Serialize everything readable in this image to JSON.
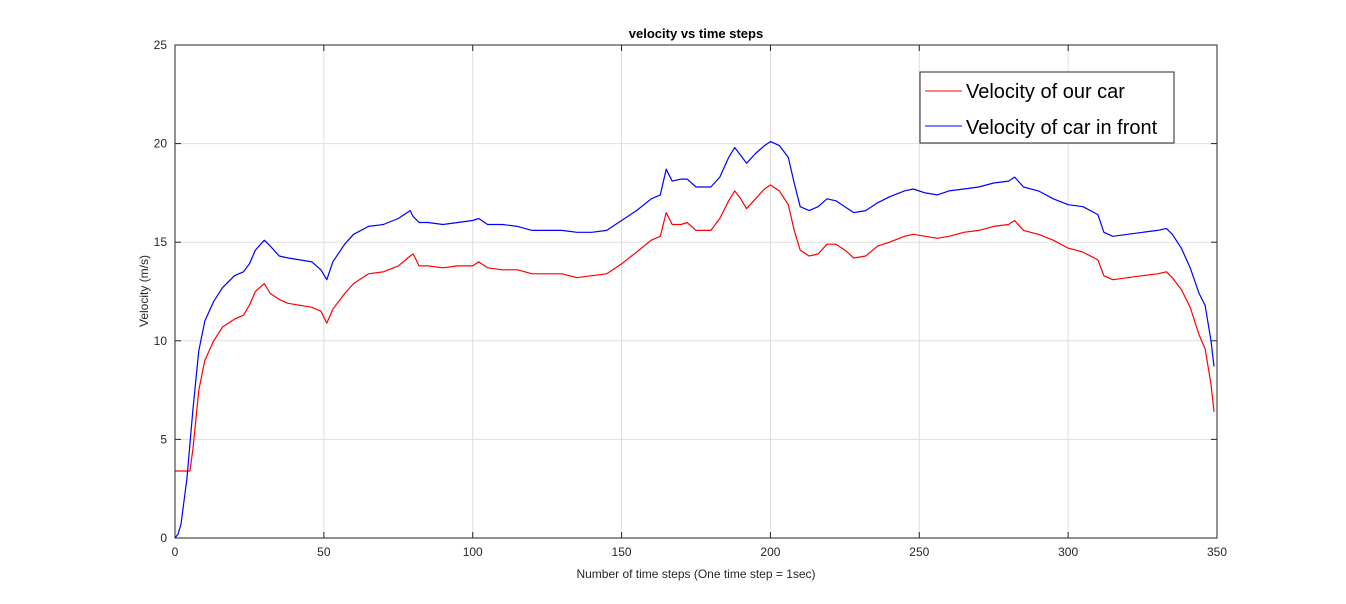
{
  "chart_data": {
    "type": "line",
    "title": "velocity vs time steps",
    "xlabel": "Number of time steps (One time step = 1sec)",
    "ylabel": "Velocity (m/s)",
    "xlim": [
      0,
      350
    ],
    "ylim": [
      0,
      25
    ],
    "xticks": [
      "0",
      "50",
      "100",
      "150",
      "200",
      "250",
      "300",
      "350"
    ],
    "yticks": [
      "0",
      "5",
      "10",
      "15",
      "20",
      "25"
    ],
    "grid": true,
    "legend_position": "top-right",
    "series": [
      {
        "name": "Velocity of our car",
        "color": "#ff0000",
        "points": [
          [
            0,
            3.4
          ],
          [
            2,
            3.4
          ],
          [
            5,
            3.4
          ],
          [
            6,
            4.5
          ],
          [
            8,
            7.5
          ],
          [
            10,
            9.0
          ],
          [
            13,
            10.0
          ],
          [
            16,
            10.7
          ],
          [
            20,
            11.1
          ],
          [
            23,
            11.3
          ],
          [
            25,
            11.8
          ],
          [
            27,
            12.5
          ],
          [
            30,
            12.9
          ],
          [
            32,
            12.4
          ],
          [
            35,
            12.1
          ],
          [
            38,
            11.9
          ],
          [
            42,
            11.8
          ],
          [
            46,
            11.7
          ],
          [
            49,
            11.5
          ],
          [
            51,
            10.9
          ],
          [
            53,
            11.6
          ],
          [
            57,
            12.4
          ],
          [
            60,
            12.9
          ],
          [
            65,
            13.4
          ],
          [
            70,
            13.5
          ],
          [
            75,
            13.8
          ],
          [
            79,
            14.3
          ],
          [
            80,
            14.4
          ],
          [
            82,
            13.8
          ],
          [
            85,
            13.8
          ],
          [
            90,
            13.7
          ],
          [
            95,
            13.8
          ],
          [
            100,
            13.8
          ],
          [
            102,
            14.0
          ],
          [
            105,
            13.7
          ],
          [
            110,
            13.6
          ],
          [
            115,
            13.6
          ],
          [
            120,
            13.4
          ],
          [
            125,
            13.4
          ],
          [
            130,
            13.4
          ],
          [
            135,
            13.2
          ],
          [
            140,
            13.3
          ],
          [
            145,
            13.4
          ],
          [
            150,
            13.9
          ],
          [
            155,
            14.5
          ],
          [
            160,
            15.1
          ],
          [
            163,
            15.3
          ],
          [
            165,
            16.5
          ],
          [
            167,
            15.9
          ],
          [
            170,
            15.9
          ],
          [
            172,
            16.0
          ],
          [
            175,
            15.6
          ],
          [
            180,
            15.6
          ],
          [
            183,
            16.2
          ],
          [
            186,
            17.1
          ],
          [
            188,
            17.6
          ],
          [
            190,
            17.2
          ],
          [
            192,
            16.7
          ],
          [
            195,
            17.2
          ],
          [
            198,
            17.7
          ],
          [
            200,
            17.9
          ],
          [
            203,
            17.6
          ],
          [
            206,
            16.9
          ],
          [
            208,
            15.6
          ],
          [
            210,
            14.6
          ],
          [
            213,
            14.3
          ],
          [
            216,
            14.4
          ],
          [
            219,
            14.9
          ],
          [
            222,
            14.9
          ],
          [
            225,
            14.6
          ],
          [
            228,
            14.2
          ],
          [
            232,
            14.3
          ],
          [
            236,
            14.8
          ],
          [
            240,
            15.0
          ],
          [
            245,
            15.3
          ],
          [
            248,
            15.4
          ],
          [
            252,
            15.3
          ],
          [
            256,
            15.2
          ],
          [
            260,
            15.3
          ],
          [
            265,
            15.5
          ],
          [
            270,
            15.6
          ],
          [
            275,
            15.8
          ],
          [
            280,
            15.9
          ],
          [
            282,
            16.1
          ],
          [
            285,
            15.6
          ],
          [
            290,
            15.4
          ],
          [
            295,
            15.1
          ],
          [
            300,
            14.7
          ],
          [
            305,
            14.5
          ],
          [
            310,
            14.1
          ],
          [
            312,
            13.3
          ],
          [
            315,
            13.1
          ],
          [
            320,
            13.2
          ],
          [
            325,
            13.3
          ],
          [
            330,
            13.4
          ],
          [
            333,
            13.5
          ],
          [
            335,
            13.2
          ],
          [
            338,
            12.6
          ],
          [
            341,
            11.7
          ],
          [
            344,
            10.3
          ],
          [
            346,
            9.6
          ],
          [
            348,
            7.8
          ],
          [
            349,
            6.4
          ]
        ]
      },
      {
        "name": "Velocity of car in front",
        "color": "#0000ff",
        "points": [
          [
            0,
            0.0
          ],
          [
            1,
            0.2
          ],
          [
            2,
            0.7
          ],
          [
            4,
            3.0
          ],
          [
            6,
            6.5
          ],
          [
            8,
            9.5
          ],
          [
            10,
            11.0
          ],
          [
            13,
            12.0
          ],
          [
            16,
            12.7
          ],
          [
            20,
            13.3
          ],
          [
            23,
            13.5
          ],
          [
            25,
            13.9
          ],
          [
            27,
            14.6
          ],
          [
            30,
            15.1
          ],
          [
            32,
            14.8
          ],
          [
            35,
            14.3
          ],
          [
            38,
            14.2
          ],
          [
            42,
            14.1
          ],
          [
            46,
            14.0
          ],
          [
            49,
            13.6
          ],
          [
            51,
            13.1
          ],
          [
            53,
            14.0
          ],
          [
            57,
            14.9
          ],
          [
            60,
            15.4
          ],
          [
            65,
            15.8
          ],
          [
            70,
            15.9
          ],
          [
            75,
            16.2
          ],
          [
            79,
            16.6
          ],
          [
            80,
            16.3
          ],
          [
            82,
            16.0
          ],
          [
            85,
            16.0
          ],
          [
            90,
            15.9
          ],
          [
            95,
            16.0
          ],
          [
            100,
            16.1
          ],
          [
            102,
            16.2
          ],
          [
            105,
            15.9
          ],
          [
            110,
            15.9
          ],
          [
            115,
            15.8
          ],
          [
            120,
            15.6
          ],
          [
            125,
            15.6
          ],
          [
            130,
            15.6
          ],
          [
            135,
            15.5
          ],
          [
            140,
            15.5
          ],
          [
            145,
            15.6
          ],
          [
            150,
            16.1
          ],
          [
            155,
            16.6
          ],
          [
            160,
            17.2
          ],
          [
            163,
            17.4
          ],
          [
            165,
            18.7
          ],
          [
            167,
            18.1
          ],
          [
            170,
            18.2
          ],
          [
            172,
            18.2
          ],
          [
            175,
            17.8
          ],
          [
            180,
            17.8
          ],
          [
            183,
            18.3
          ],
          [
            186,
            19.3
          ],
          [
            188,
            19.8
          ],
          [
            190,
            19.4
          ],
          [
            192,
            19.0
          ],
          [
            195,
            19.5
          ],
          [
            198,
            19.9
          ],
          [
            200,
            20.1
          ],
          [
            203,
            19.9
          ],
          [
            206,
            19.3
          ],
          [
            208,
            18.0
          ],
          [
            210,
            16.8
          ],
          [
            213,
            16.6
          ],
          [
            216,
            16.8
          ],
          [
            219,
            17.2
          ],
          [
            222,
            17.1
          ],
          [
            225,
            16.8
          ],
          [
            228,
            16.5
          ],
          [
            232,
            16.6
          ],
          [
            236,
            17.0
          ],
          [
            240,
            17.3
          ],
          [
            245,
            17.6
          ],
          [
            248,
            17.7
          ],
          [
            252,
            17.5
          ],
          [
            256,
            17.4
          ],
          [
            260,
            17.6
          ],
          [
            265,
            17.7
          ],
          [
            270,
            17.8
          ],
          [
            275,
            18.0
          ],
          [
            280,
            18.1
          ],
          [
            282,
            18.3
          ],
          [
            285,
            17.8
          ],
          [
            290,
            17.6
          ],
          [
            295,
            17.2
          ],
          [
            300,
            16.9
          ],
          [
            305,
            16.8
          ],
          [
            310,
            16.4
          ],
          [
            312,
            15.5
          ],
          [
            315,
            15.3
          ],
          [
            320,
            15.4
          ],
          [
            325,
            15.5
          ],
          [
            330,
            15.6
          ],
          [
            333,
            15.7
          ],
          [
            335,
            15.4
          ],
          [
            338,
            14.7
          ],
          [
            341,
            13.7
          ],
          [
            344,
            12.4
          ],
          [
            346,
            11.8
          ],
          [
            348,
            10.0
          ],
          [
            349,
            8.7
          ]
        ]
      }
    ]
  }
}
